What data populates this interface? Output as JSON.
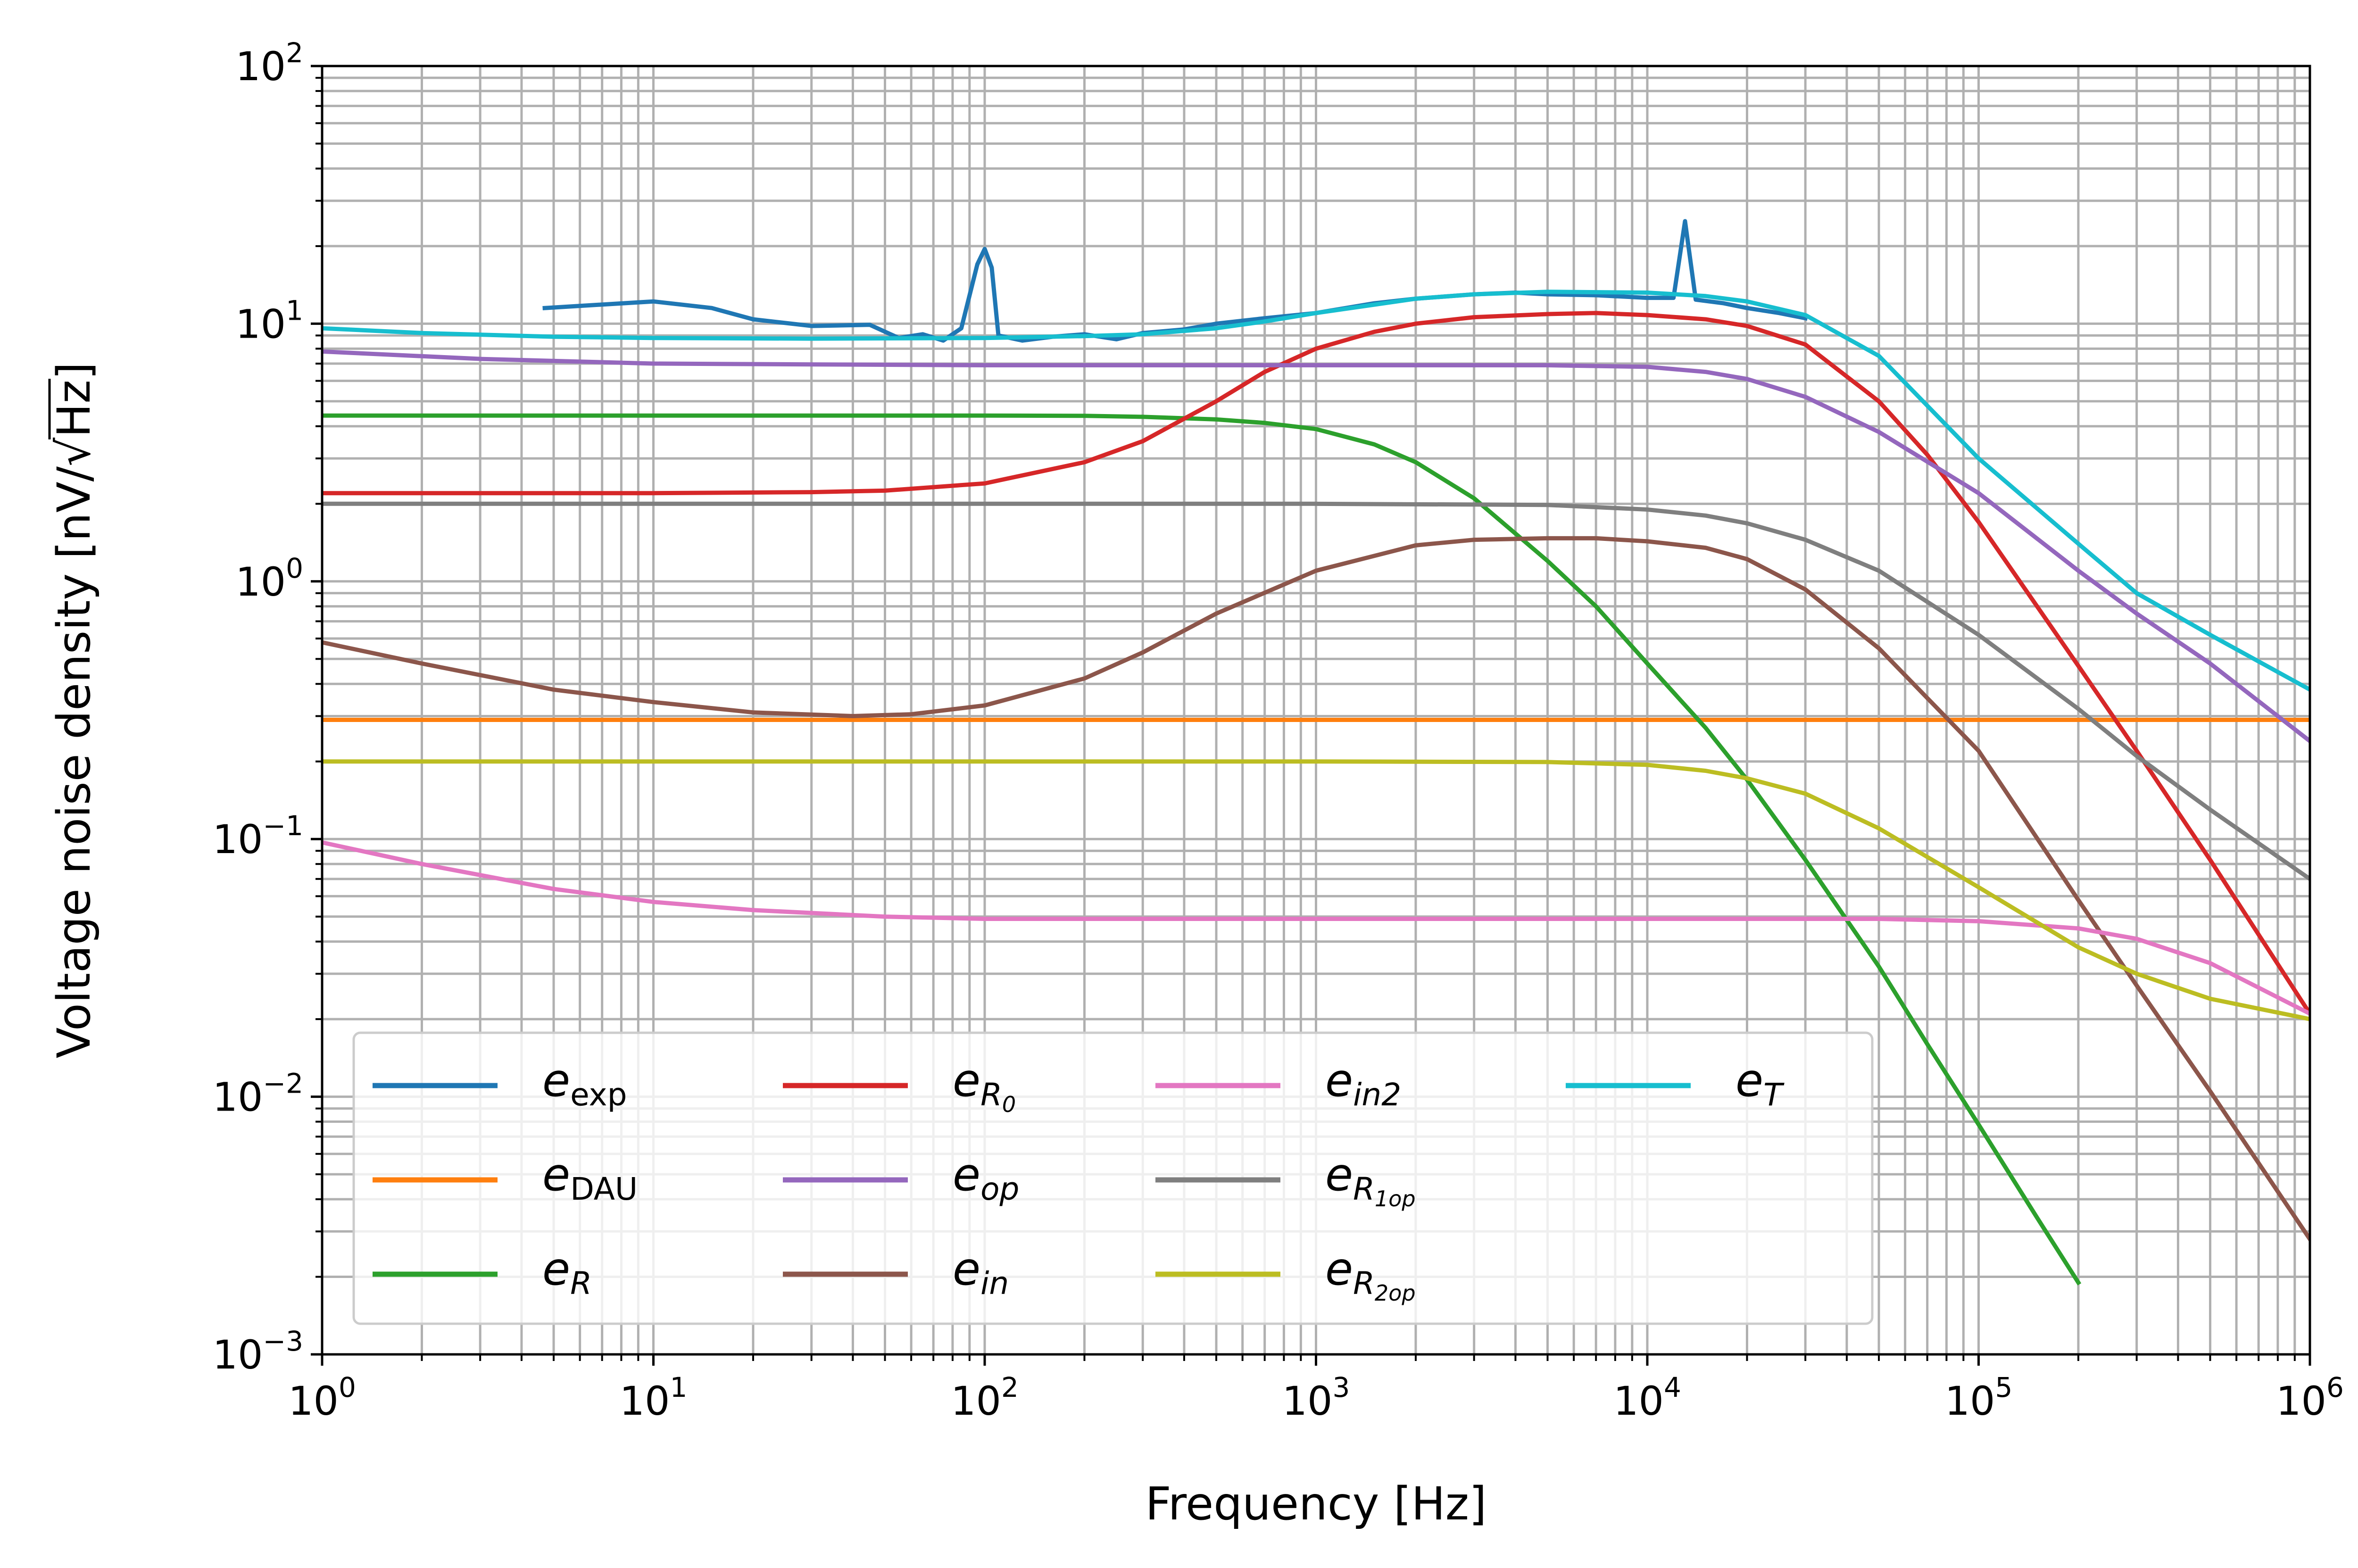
{
  "chart_data": {
    "type": "line",
    "title": "",
    "xlabel": "Frequency [Hz]",
    "ylabel_text": "Voltage noise density [nV/",
    "ylabel_root": "Hz",
    "ylabel_close": "]",
    "x_scale": "log",
    "y_scale": "log",
    "xlim": [
      1,
      1000000
    ],
    "ylim": [
      0.001,
      100
    ],
    "grid": true,
    "legend_placement": "lower-left",
    "legend_columns": 4,
    "x_ticks": [
      {
        "value": 1,
        "base": "10",
        "exp": "0"
      },
      {
        "value": 10,
        "base": "10",
        "exp": "1"
      },
      {
        "value": 100,
        "base": "10",
        "exp": "2"
      },
      {
        "value": 1000,
        "base": "10",
        "exp": "3"
      },
      {
        "value": 10000,
        "base": "10",
        "exp": "4"
      },
      {
        "value": 100000,
        "base": "10",
        "exp": "5"
      },
      {
        "value": 1000000,
        "base": "10",
        "exp": "6"
      }
    ],
    "y_ticks": [
      {
        "value": 0.001,
        "base": "10",
        "exp": "−3"
      },
      {
        "value": 0.01,
        "base": "10",
        "exp": "−2"
      },
      {
        "value": 0.1,
        "base": "10",
        "exp": "−1"
      },
      {
        "value": 1,
        "base": "10",
        "exp": "0"
      },
      {
        "value": 10,
        "base": "10",
        "exp": "1"
      },
      {
        "value": 100,
        "base": "10",
        "exp": "2"
      }
    ],
    "series": [
      {
        "name": "e_exp",
        "legend": {
          "main": "e",
          "sub": "exp",
          "sub_italic": false
        },
        "color": "#1f77b4",
        "x": [
          4.7,
          10,
          15,
          20,
          30,
          45,
          55,
          65,
          75,
          85,
          95,
          100,
          105,
          110,
          130,
          160,
          200,
          250,
          300,
          400,
          500,
          700,
          1000,
          1500,
          2000,
          3000,
          4000,
          5000,
          7000,
          10000,
          12000,
          13000,
          14000,
          17000,
          20000,
          25000,
          30000
        ],
        "y": [
          11.5,
          12.2,
          11.5,
          10.4,
          9.8,
          9.9,
          8.8,
          9.1,
          8.6,
          9.6,
          17.0,
          19.5,
          16.5,
          9.0,
          8.6,
          8.9,
          9.1,
          8.7,
          9.2,
          9.5,
          10.0,
          10.5,
          11.0,
          12.0,
          12.5,
          13.0,
          13.2,
          13.0,
          12.9,
          12.6,
          12.6,
          25.0,
          12.4,
          12.0,
          11.5,
          11.0,
          10.5
        ]
      },
      {
        "name": "e_DAU",
        "legend": {
          "main": "e",
          "sub": "DAU",
          "sub_italic": false
        },
        "color": "#ff7f0e",
        "x": [
          1,
          1000000
        ],
        "y": [
          0.29,
          0.29
        ]
      },
      {
        "name": "e_R",
        "legend": {
          "main": "e",
          "sub": "R",
          "sub_italic": true
        },
        "color": "#2ca02c",
        "x": [
          1,
          10,
          100,
          200,
          300,
          500,
          700,
          1000,
          1500,
          2000,
          3000,
          5000,
          7000,
          10000,
          15000,
          20000,
          30000,
          50000,
          70000,
          100000,
          150000,
          200000
        ],
        "y": [
          4.4,
          4.4,
          4.4,
          4.39,
          4.35,
          4.25,
          4.12,
          3.9,
          3.4,
          2.9,
          2.1,
          1.2,
          0.8,
          0.48,
          0.27,
          0.17,
          0.083,
          0.032,
          0.016,
          0.0078,
          0.0034,
          0.0019
        ]
      },
      {
        "name": "e_R0",
        "legend": {
          "main": "e",
          "sub": "R",
          "subsub": "0",
          "sub_italic": true
        },
        "color": "#d62728",
        "x": [
          1,
          10,
          30,
          50,
          100,
          200,
          300,
          500,
          700,
          1000,
          1500,
          2000,
          3000,
          5000,
          7000,
          10000,
          15000,
          20000,
          30000,
          50000,
          70000,
          100000,
          200000,
          300000,
          500000,
          1000000
        ],
        "y": [
          2.2,
          2.2,
          2.22,
          2.25,
          2.4,
          2.9,
          3.5,
          5.0,
          6.5,
          8.0,
          9.3,
          10.0,
          10.6,
          10.9,
          11.0,
          10.8,
          10.4,
          9.8,
          8.3,
          5.0,
          3.1,
          1.7,
          0.47,
          0.22,
          0.083,
          0.021
        ]
      },
      {
        "name": "e_op",
        "legend": {
          "main": "e",
          "sub": "op",
          "sub_italic": true
        },
        "color": "#9467bd",
        "x": [
          1,
          3,
          10,
          30,
          100,
          1000,
          5000,
          10000,
          15000,
          20000,
          30000,
          50000,
          100000,
          200000,
          300000,
          500000,
          1000000
        ],
        "y": [
          7.8,
          7.3,
          7.0,
          6.95,
          6.9,
          6.9,
          6.9,
          6.8,
          6.5,
          6.1,
          5.2,
          3.8,
          2.2,
          1.1,
          0.75,
          0.48,
          0.24
        ]
      },
      {
        "name": "e_in",
        "legend": {
          "main": "e",
          "sub": "in",
          "sub_italic": true
        },
        "color": "#8c564b",
        "x": [
          1,
          2,
          5,
          10,
          20,
          40,
          60,
          100,
          200,
          300,
          500,
          1000,
          2000,
          3000,
          5000,
          7000,
          10000,
          15000,
          20000,
          30000,
          50000,
          100000,
          200000,
          300000,
          500000,
          1000000
        ],
        "y": [
          0.58,
          0.48,
          0.38,
          0.34,
          0.31,
          0.3,
          0.305,
          0.33,
          0.42,
          0.53,
          0.75,
          1.1,
          1.38,
          1.45,
          1.47,
          1.47,
          1.43,
          1.35,
          1.22,
          0.93,
          0.55,
          0.22,
          0.058,
          0.027,
          0.0105,
          0.0028
        ]
      },
      {
        "name": "e_in2",
        "legend": {
          "main": "e",
          "sub": "in2",
          "sub_italic": true
        },
        "color": "#e377c2",
        "x": [
          1,
          2,
          5,
          10,
          20,
          50,
          100,
          1000,
          10000,
          50000,
          100000,
          200000,
          300000,
          500000,
          1000000
        ],
        "y": [
          0.097,
          0.08,
          0.064,
          0.057,
          0.053,
          0.05,
          0.049,
          0.049,
          0.049,
          0.049,
          0.048,
          0.045,
          0.041,
          0.033,
          0.021
        ]
      },
      {
        "name": "e_R1op",
        "legend": {
          "main": "e",
          "sub": "R",
          "subsub": "1op",
          "sub_italic": true
        },
        "color": "#7f7f7f",
        "x": [
          1,
          100,
          1000,
          5000,
          10000,
          15000,
          20000,
          30000,
          50000,
          100000,
          200000,
          300000,
          500000,
          1000000
        ],
        "y": [
          2.0,
          2.0,
          2.0,
          1.98,
          1.9,
          1.8,
          1.68,
          1.45,
          1.1,
          0.62,
          0.32,
          0.21,
          0.13,
          0.07
        ]
      },
      {
        "name": "e_R2op",
        "legend": {
          "main": "e",
          "sub": "R",
          "subsub": "2op",
          "sub_italic": true
        },
        "color": "#bcbd22",
        "x": [
          1,
          100,
          1000,
          5000,
          10000,
          15000,
          20000,
          30000,
          50000,
          100000,
          200000,
          300000,
          500000,
          1000000
        ],
        "y": [
          0.2,
          0.2,
          0.2,
          0.199,
          0.194,
          0.184,
          0.172,
          0.15,
          0.11,
          0.065,
          0.038,
          0.03,
          0.024,
          0.02
        ]
      },
      {
        "name": "e_T",
        "legend": {
          "main": "e",
          "sub": "T",
          "sub_italic": true
        },
        "color": "#17becf",
        "x": [
          1,
          2,
          5,
          10,
          30,
          100,
          200,
          300,
          500,
          700,
          1000,
          2000,
          3000,
          5000,
          10000,
          15000,
          20000,
          30000,
          50000,
          100000,
          200000,
          300000,
          500000,
          1000000
        ],
        "y": [
          9.6,
          9.2,
          8.9,
          8.8,
          8.75,
          8.8,
          8.95,
          9.1,
          9.6,
          10.2,
          11.0,
          12.5,
          13.0,
          13.3,
          13.2,
          12.8,
          12.2,
          10.8,
          7.5,
          3.0,
          1.4,
          0.9,
          0.62,
          0.38
        ]
      }
    ]
  }
}
